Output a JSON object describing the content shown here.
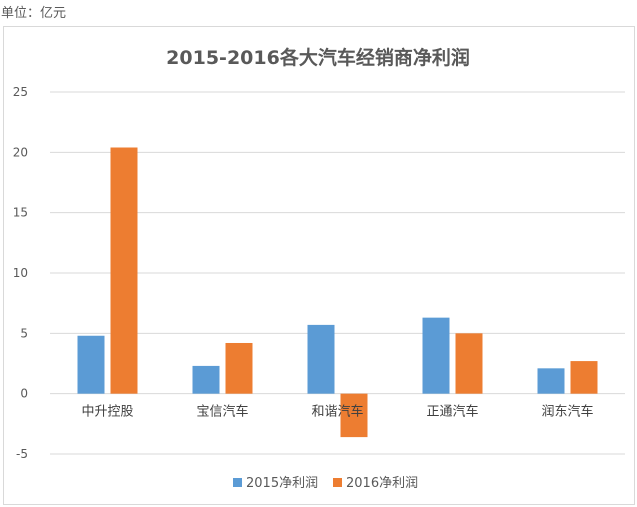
{
  "unit_label": "单位：亿元",
  "colors": {
    "s2015": "#5B9BD5",
    "s2016": "#ED7D31",
    "grid": "#d9d9d9"
  },
  "chart_data": {
    "type": "bar",
    "title": "2015-2016各大汽车经销商净利润",
    "xlabel": "",
    "ylabel": "",
    "ylim": [
      -5,
      25
    ],
    "yticks": [
      -5,
      0,
      5,
      10,
      15,
      20,
      25
    ],
    "grid": true,
    "legend_position": "bottom",
    "categories": [
      "中升控股",
      "宝信汽车",
      "和谐汽车",
      "正通汽车",
      "润东汽车"
    ],
    "series": [
      {
        "name": "2015净利润",
        "values": [
          4.8,
          2.3,
          5.7,
          6.3,
          2.1
        ]
      },
      {
        "name": "2016净利润",
        "values": [
          20.4,
          4.2,
          -3.6,
          5.0,
          2.7
        ]
      }
    ]
  }
}
